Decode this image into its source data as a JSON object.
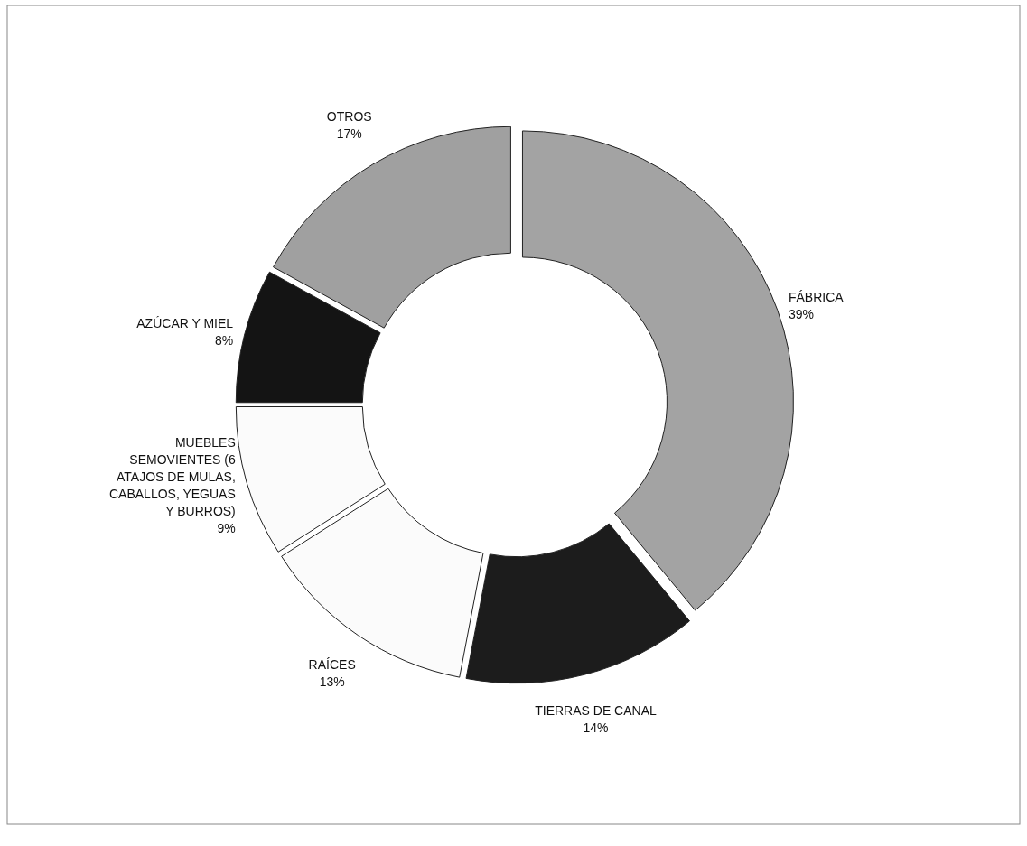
{
  "chart_data": {
    "type": "donut",
    "categories": [
      "FÁBRICA",
      "TIERRAS DE CANAL",
      "RAÍCES",
      "MUEBLES SEMOVIENTES (6 ATAJOS DE MULAS, CABALLOS, YEGUAS Y BURROS)",
      "AZÚCAR Y MIEL",
      "OTROS"
    ],
    "values": [
      39,
      14,
      13,
      9,
      8,
      17
    ],
    "value_labels": [
      "39%",
      "14%",
      "13%",
      "9%",
      "8%",
      "17%"
    ],
    "colors": [
      "#a3a3a3",
      "#1c1c1c",
      "#fbfbfb",
      "#fbfbfb",
      "#141414",
      "#a0a0a0"
    ]
  }
}
